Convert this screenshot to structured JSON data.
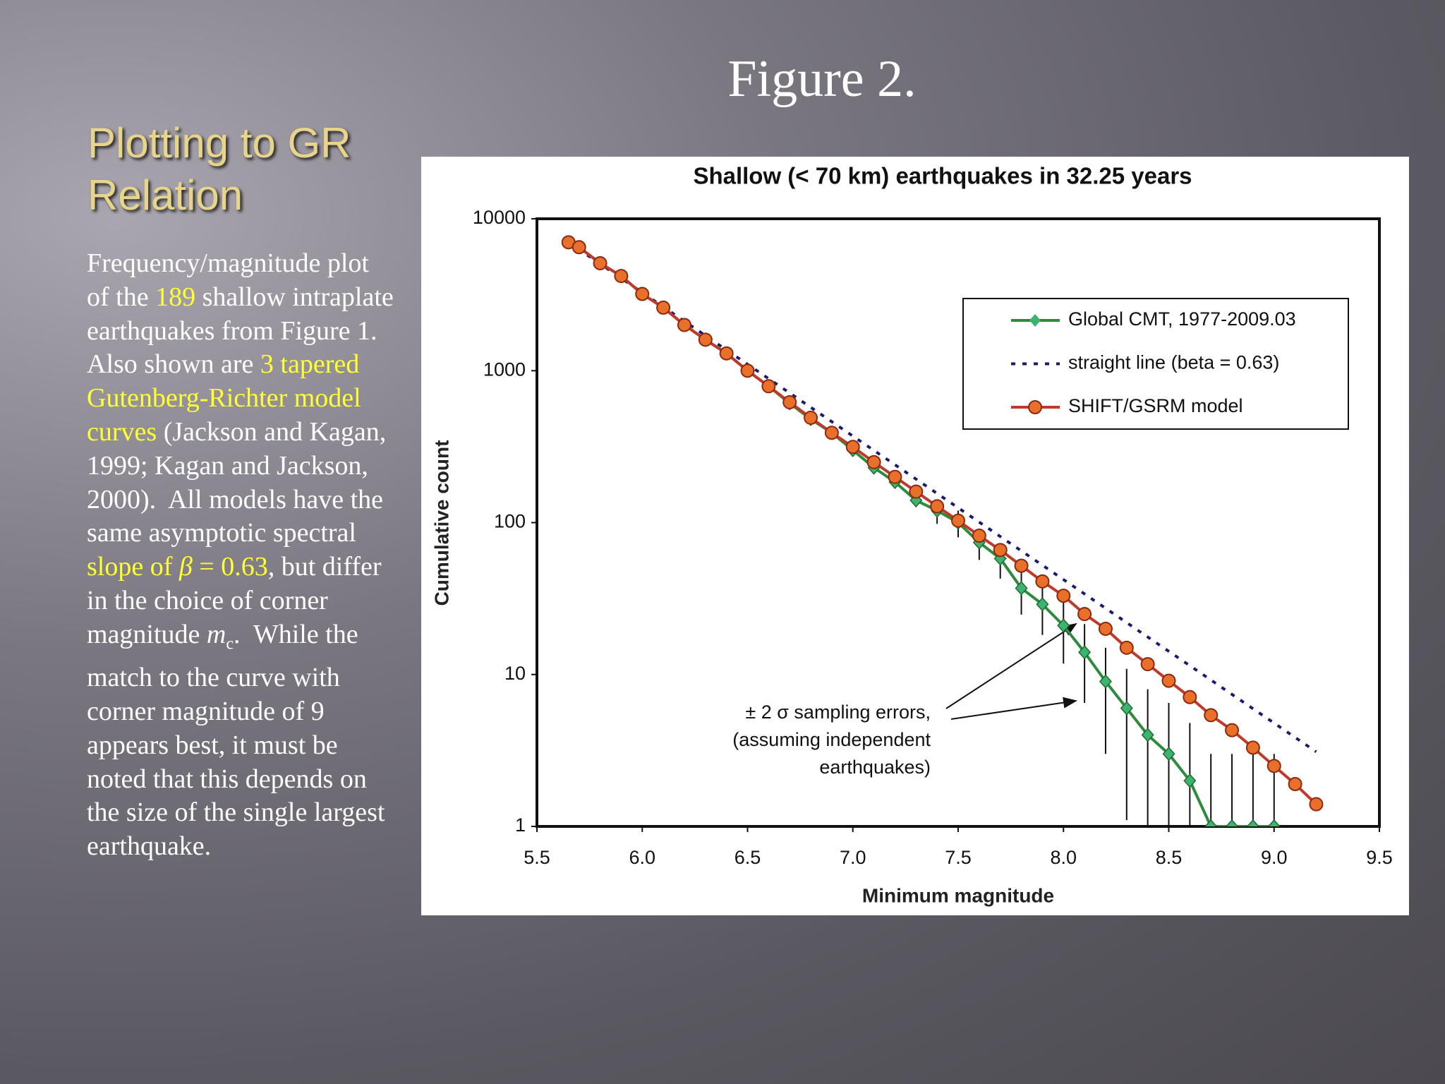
{
  "slide": {
    "title": "Figure 2.",
    "heading": "Plotting to GR Relation",
    "body": [
      {
        "text": "Frequency/magnitude plot of the "
      },
      {
        "text": "189",
        "color": "#ffff33"
      },
      {
        "text": " shallow intraplate earthquakes from Figure 1.  Also shown are "
      },
      {
        "text": "3 tapered Gutenberg-Richter model curves",
        "color": "#ffff33"
      },
      {
        "text": " (Jackson and Kagan, 1999; Kagan and Jackson, 2000).  All models have the same asymptotic spectral "
      },
      {
        "text": "slope of ",
        "color": "#ffff33"
      },
      {
        "text": "β",
        "color": "#ffff33",
        "style": "italic"
      },
      {
        "text": " = 0.63",
        "color": "#ffff33"
      },
      {
        "text": ", but differ in the choice of corner magnitude "
      },
      {
        "text": "m",
        "style": "italic"
      },
      {
        "text": "c",
        "style": "sub"
      },
      {
        "text": ".  While the match to the curve with corner magnitude of 9 appears best, it must be noted that this depends on the size of the single largest earthquake."
      }
    ]
  },
  "chart_data": {
    "type": "line",
    "title": "Shallow (< 70 km) earthquakes in 32.25 years",
    "x_label": "Minimum magnitude",
    "y_label": "Cumulative count",
    "xlim": [
      5.5,
      9.5
    ],
    "xticks": [
      5.5,
      {
        "value": 6,
        "label": "6.0"
      },
      6.5,
      {
        "value": 7,
        "label": "7.0"
      },
      7.5,
      {
        "value": 8,
        "label": "8.0"
      },
      8.5,
      {
        "value": 9,
        "label": "9.0"
      },
      9.5
    ],
    "ylim": [
      1,
      10000
    ],
    "yticks": [
      1,
      10,
      100,
      1000,
      10000
    ],
    "y_log": true,
    "grid": false,
    "legend": "upper right",
    "series": [
      {
        "name": "Global CMT, 1977-2009.03",
        "color": "#2e8b3e",
        "marker": "diamond",
        "marker_color": "#3cb371",
        "line_style": "solid",
        "x": [
          5.65,
          5.7,
          5.8,
          5.9,
          6.0,
          6.1,
          6.2,
          6.3,
          6.4,
          6.5,
          6.6,
          6.7,
          6.8,
          6.9,
          7.0,
          7.1,
          7.2,
          7.3,
          7.4,
          7.5,
          7.6,
          7.7,
          7.8,
          7.9,
          8.0,
          8.1,
          8.2,
          8.3,
          8.4,
          8.5,
          8.6,
          8.7,
          8.8,
          8.9,
          9.0
        ],
        "values": [
          7000,
          6500,
          5100,
          4200,
          3200,
          2600,
          2000,
          1600,
          1300,
          1000,
          790,
          610,
          480,
          390,
          300,
          230,
          185,
          140,
          120,
          100,
          74,
          58,
          37,
          29,
          21,
          14,
          9,
          6,
          4,
          3,
          2,
          1,
          1,
          1,
          1
        ],
        "errors": [
          null,
          null,
          null,
          null,
          null,
          null,
          null,
          null,
          null,
          null,
          null,
          null,
          null,
          null,
          null,
          null,
          null,
          null,
          21.9,
          20,
          17.2,
          15.2,
          12.2,
          10.8,
          9.2,
          7.5,
          6,
          4.9,
          4,
          3.5,
          2.8,
          2,
          2,
          2,
          2
        ]
      },
      {
        "name": "straight line (beta = 0.63)",
        "color": "#1a1a6e",
        "marker": "none",
        "line_style": "dotted",
        "x": [
          5.65,
          9.2
        ],
        "values": [
          7000,
          3.1
        ]
      },
      {
        "name": "SHIFT/GSRM model",
        "color": "#c0392b",
        "marker": "circle",
        "marker_color": "#e8702a",
        "line_style": "solid",
        "x": [
          5.65,
          5.7,
          5.8,
          5.9,
          6.0,
          6.1,
          6.2,
          6.3,
          6.4,
          6.5,
          6.6,
          6.7,
          6.8,
          6.9,
          7.0,
          7.1,
          7.2,
          7.3,
          7.4,
          7.5,
          7.6,
          7.7,
          7.8,
          7.9,
          8.0,
          8.1,
          8.2,
          8.3,
          8.4,
          8.5,
          8.6,
          8.7,
          8.8,
          8.9,
          9.0,
          9.1,
          9.2
        ],
        "values": [
          7000,
          6500,
          5100,
          4200,
          3200,
          2600,
          2000,
          1600,
          1300,
          1000,
          790,
          620,
          490,
          390,
          315,
          250,
          200,
          160,
          128,
          103,
          82,
          66,
          52,
          41,
          33,
          25,
          20,
          15,
          11.7,
          9.1,
          7.1,
          5.4,
          4.3,
          3.3,
          2.5,
          1.9,
          1.4
        ]
      }
    ],
    "annotation": [
      "± 2 σ sampling errors,",
      "(assuming independent",
      "earthquakes)"
    ]
  }
}
